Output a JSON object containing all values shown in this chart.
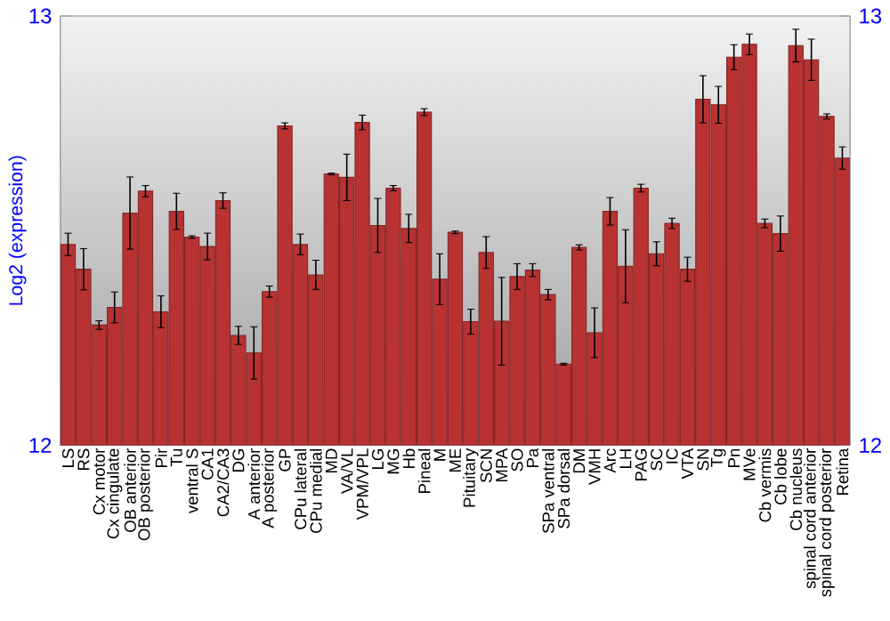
{
  "chart_data": {
    "type": "bar",
    "ylabel": "Log2 (expression)",
    "categories": [
      "LS",
      "RS",
      "Cx motor",
      "Cx cingulate",
      "OB anterior",
      "OB posterior",
      "Pir",
      "Tu",
      "ventral S",
      "CA1",
      "CA2/CA3",
      "DG",
      "A anterior",
      "A posterior",
      "GP",
      "CPu lateral",
      "CPu medial",
      "MD",
      "VA/VL",
      "VPM/VPL",
      "LG",
      "MG",
      "Hb",
      "Pineal",
      "M",
      "ME",
      "Pituitary",
      "SCN",
      "MPA",
      "SO",
      "Pa",
      "SPa ventral",
      "SPa dorsal",
      "DM",
      "VMH",
      "Arc",
      "LH",
      "PAG",
      "SC",
      "IC",
      "VTA",
      "SN",
      "Tg",
      "Pn",
      "MVe",
      "Cb vermis",
      "Cb lobe",
      "Cb nucleus",
      "spinal cord anterior",
      "spinal cord posterior",
      "Retina"
    ],
    "values": [
      12.468,
      12.41,
      12.28,
      12.321,
      12.541,
      12.592,
      12.311,
      12.545,
      12.485,
      12.463,
      12.57,
      12.256,
      12.215,
      12.358,
      12.744,
      12.468,
      12.397,
      12.632,
      12.624,
      12.752,
      12.512,
      12.599,
      12.505,
      12.776,
      12.387,
      12.496,
      12.288,
      12.449,
      12.289,
      12.393,
      12.408,
      12.351,
      12.189,
      12.461,
      12.262,
      12.545,
      12.417,
      12.599,
      12.446,
      12.517,
      12.41,
      12.806,
      12.793,
      12.904,
      12.934,
      12.517,
      12.493,
      12.931,
      12.898,
      12.766,
      12.669
    ],
    "errors": [
      0.026,
      0.048,
      0.01,
      0.036,
      0.084,
      0.013,
      0.037,
      0.042,
      0.003,
      0.031,
      0.018,
      0.021,
      0.061,
      0.013,
      0.007,
      0.024,
      0.034,
      0.002,
      0.054,
      0.017,
      0.063,
      0.006,
      0.033,
      0.008,
      0.059,
      0.003,
      0.029,
      0.037,
      0.102,
      0.03,
      0.015,
      0.012,
      0.002,
      0.006,
      0.058,
      0.032,
      0.085,
      0.009,
      0.028,
      0.012,
      0.028,
      0.055,
      0.043,
      0.029,
      0.024,
      0.01,
      0.041,
      0.038,
      0.048,
      0.006,
      0.026
    ],
    "color": "#b83232",
    "ylim": [
      12,
      13
    ],
    "yticks": [
      12,
      13
    ],
    "y2lim": [
      12,
      13
    ],
    "y2ticks": [
      12,
      13
    ]
  }
}
